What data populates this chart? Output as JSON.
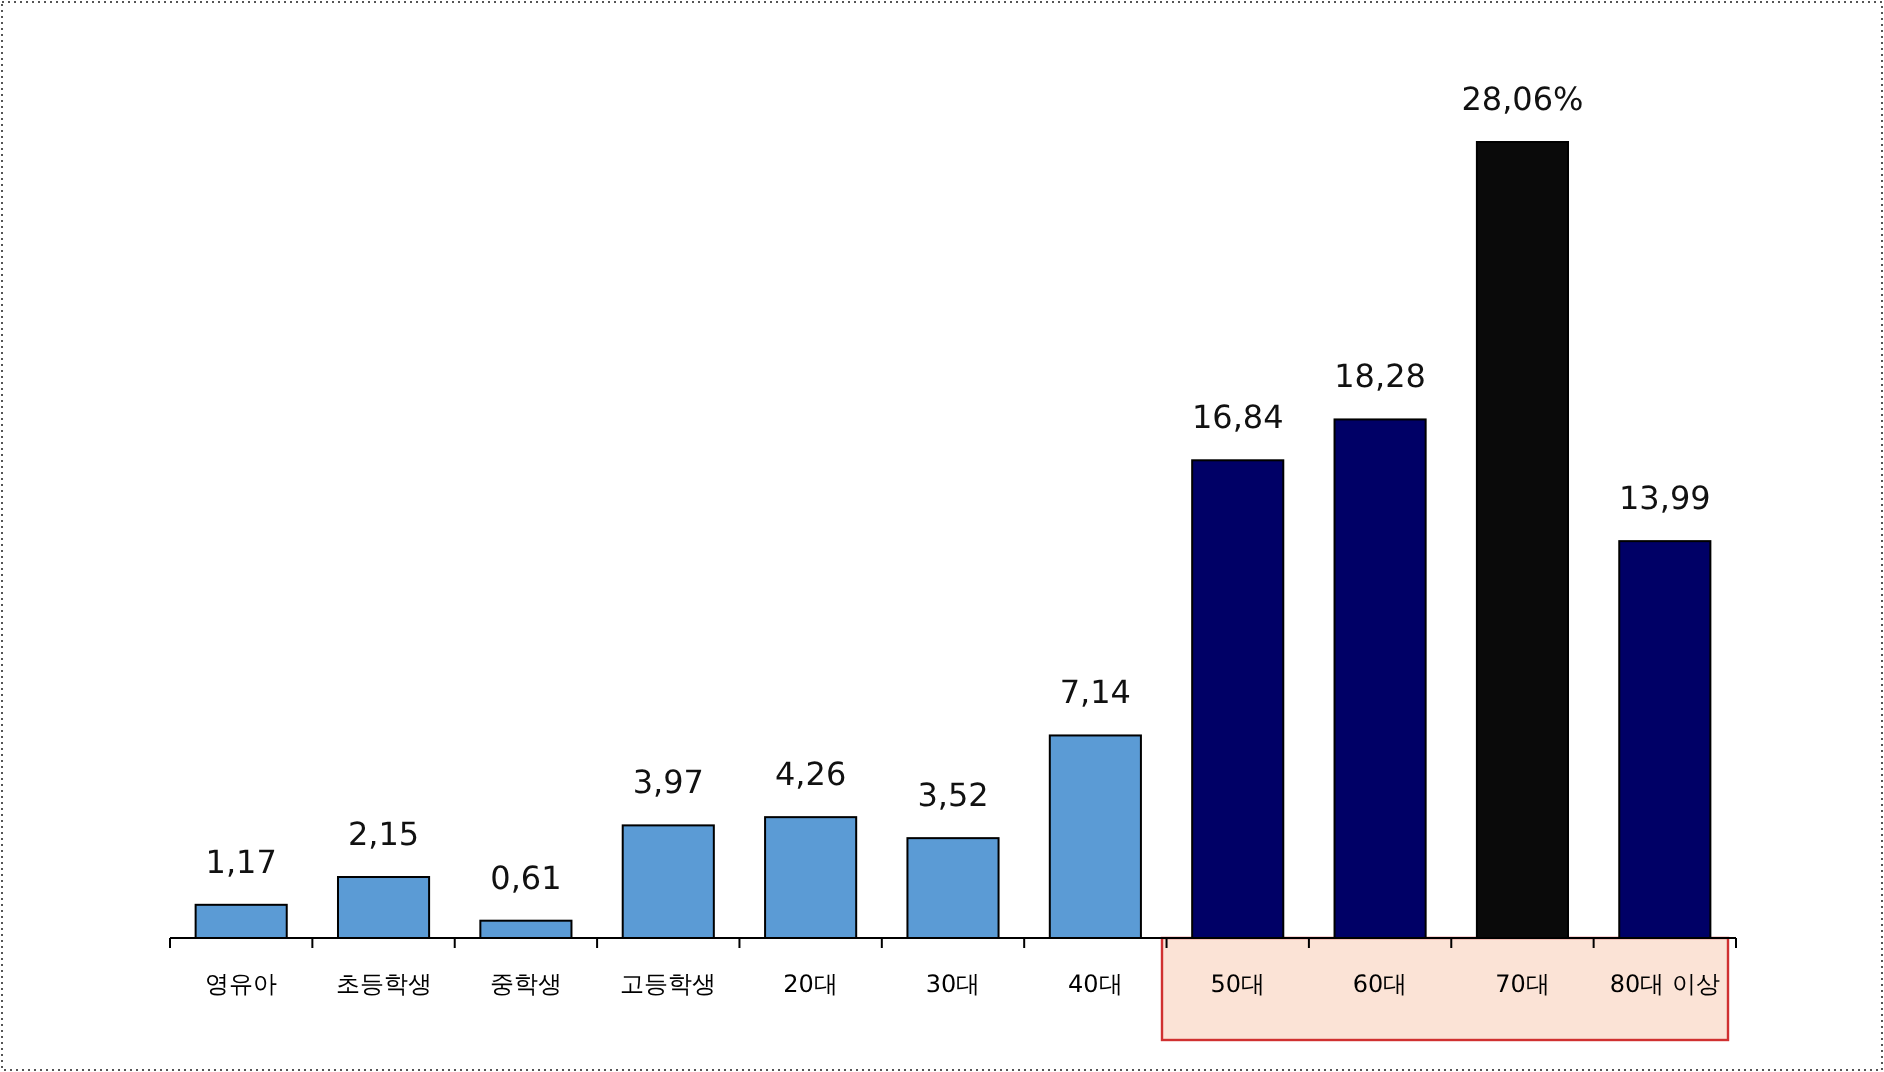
{
  "chart_data": {
    "type": "bar",
    "categories": [
      "영유아",
      "초등학생",
      "중학생",
      "고등학생",
      "20대",
      "30대",
      "40대",
      "50대",
      "60대",
      "70대",
      "80대 이상"
    ],
    "values": [
      1.17,
      2.15,
      0.61,
      3.97,
      4.26,
      3.52,
      7.14,
      16.84,
      18.28,
      28.06,
      13.99
    ],
    "colors": [
      "#5b9bd5",
      "#5b9bd5",
      "#5b9bd5",
      "#5b9bd5",
      "#5b9bd5",
      "#5b9bd5",
      "#5b9bd5",
      "#000066",
      "#000066",
      "#0a0a0a",
      "#000066"
    ],
    "value_labels": [
      "1,17",
      "2,15",
      "0,61",
      "3,97",
      "4,26",
      "3,52",
      "7,14",
      "16,84",
      "18,28",
      "28,06%",
      "13,99"
    ]
  }
}
